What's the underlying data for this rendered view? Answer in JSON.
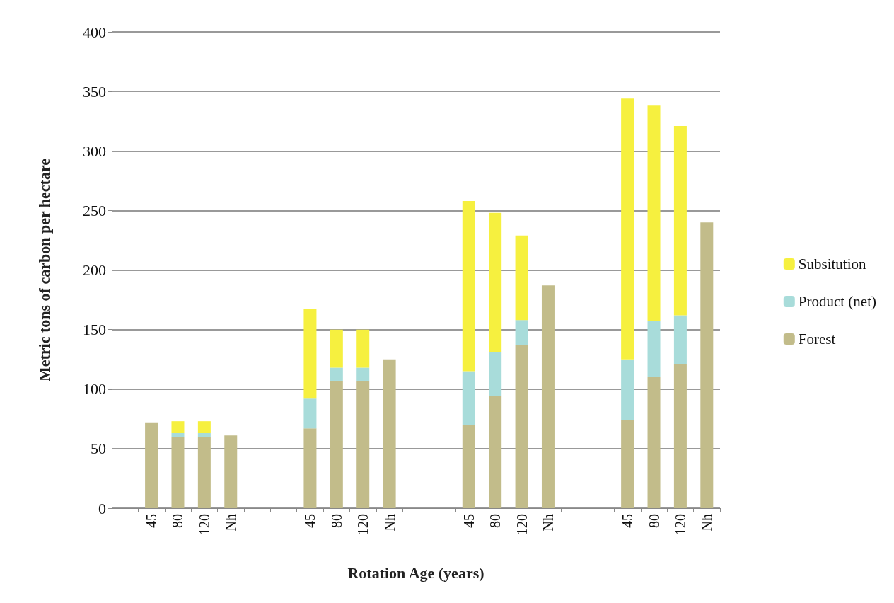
{
  "chart_data": {
    "type": "bar",
    "stacked": true,
    "xlabel": "Rotation Age (years)",
    "ylabel": "Metric tons of carbon per hectare",
    "categories": [
      null,
      "45",
      "80",
      "120",
      "Nh",
      null,
      null,
      "45",
      "80",
      "120",
      "Nh",
      null,
      null,
      "45",
      "80",
      "120",
      "Nh",
      null,
      null,
      "45",
      "80",
      "120",
      "Nh"
    ],
    "series": [
      {
        "name": "Forest",
        "color": "#c2bc8a",
        "values": [
          null,
          72,
          60,
          60,
          61,
          null,
          null,
          67,
          107,
          107,
          125,
          null,
          null,
          70,
          94,
          137,
          187,
          null,
          null,
          74,
          110,
          121,
          240
        ]
      },
      {
        "name": "Product (net)",
        "color": "#a8dcda",
        "values": [
          null,
          null,
          3,
          3,
          null,
          null,
          null,
          25,
          11,
          11,
          null,
          null,
          null,
          45,
          37,
          21,
          null,
          null,
          null,
          51,
          47,
          41,
          null
        ]
      },
      {
        "name": "Subsitution",
        "color": "#f6f03f",
        "values": [
          null,
          null,
          10,
          10,
          null,
          null,
          null,
          75,
          32,
          32,
          null,
          null,
          null,
          143,
          117,
          71,
          null,
          null,
          null,
          219,
          181,
          159,
          null
        ]
      }
    ],
    "ylim": [
      0,
      400
    ],
    "yticks": [
      0,
      50,
      100,
      150,
      200,
      250,
      300,
      350,
      400
    ],
    "grid": "y",
    "legend": "right"
  }
}
